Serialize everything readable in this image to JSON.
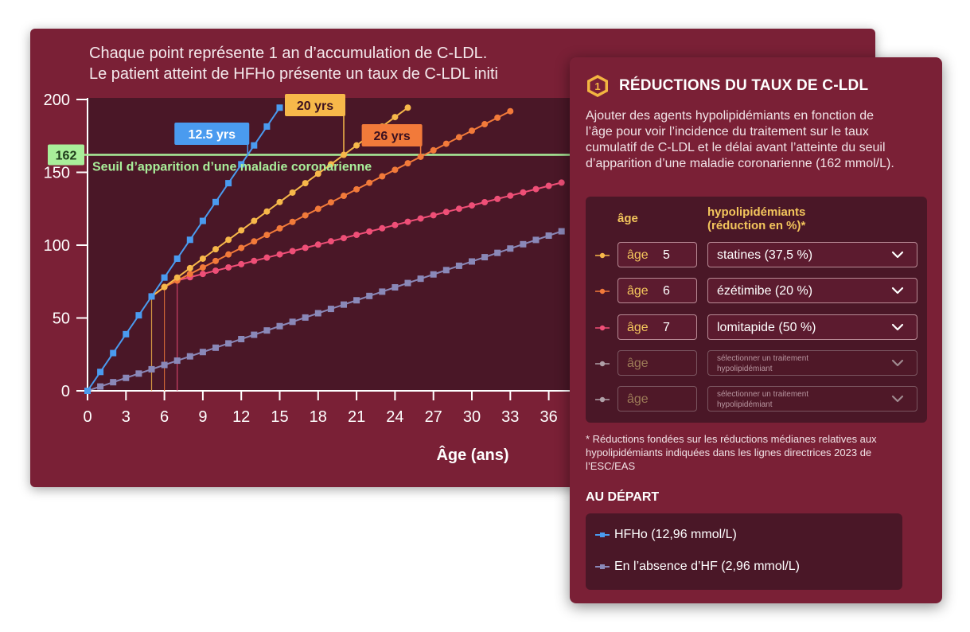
{
  "chart_header": {
    "line1": "Chaque point représente 1 an d’accumulation de C-LDL.",
    "line2": "Le patient atteint de HFHo présente un taux de C-LDL initi"
  },
  "chart_data": {
    "type": "line",
    "xlabel": "Âge (ans)",
    "ylabel": "",
    "xticks": [
      0,
      3,
      6,
      9,
      12,
      15,
      18,
      21,
      24,
      27,
      30,
      33,
      36
    ],
    "yticks": [
      0,
      50,
      100,
      150,
      200
    ],
    "xlim": [
      0,
      38
    ],
    "ylim": [
      0,
      200
    ],
    "grid": false,
    "threshold": {
      "value": 162,
      "label": "162",
      "text": "Seuil d’apparition d’une maladie coronarienne",
      "color": "#a9ef9a"
    },
    "series": [
      {
        "name": "HFHo (12,96 mmol/L)",
        "color": "#4a9bef",
        "marker": "square",
        "start_age": 0,
        "end_age": 15,
        "start_value": 0,
        "slope": 12.96
      },
      {
        "name": "",
        "color": "#f7b84a",
        "marker": "circle",
        "start_age": 5,
        "end_age": 25,
        "start_value": 64.8,
        "slope": 6.48
      },
      {
        "name": "",
        "color": "#f27a3a",
        "marker": "circle",
        "start_age": 5,
        "end_age": 33,
        "start_value": 64.8,
        "slope": 6.48,
        "second_age": 6,
        "second_slope": 4.47
      },
      {
        "name": "",
        "color": "#ef4f77",
        "marker": "circle",
        "start_age": 5,
        "end_age": 37,
        "start_value": 64.8,
        "slope": 6.48,
        "second_age": 6,
        "second_slope": 4.47,
        "third_age": 7,
        "third_slope": 2.24
      },
      {
        "name": "En l’absence d’HF (2,96 mmol/L)",
        "color": "#8a88b8",
        "marker": "square",
        "start_age": 0,
        "end_age": 37,
        "start_value": 0,
        "slope": 2.96
      }
    ],
    "callouts": [
      {
        "label": "12.5 yrs",
        "x": 12.5,
        "color": "#4a9bef",
        "text_color": "#ffffff"
      },
      {
        "label": "20 yrs",
        "x": 20,
        "color": "#f7b84a",
        "text_color": "#3a1020"
      },
      {
        "label": "26 yrs",
        "x": 26,
        "color": "#f27a3a",
        "text_color": "#3a1020"
      }
    ],
    "drop_lines": [
      {
        "x": 5,
        "color": "#f7b84a"
      },
      {
        "x": 6,
        "color": "#f27a3a"
      },
      {
        "x": 7,
        "color": "#ef4f77"
      }
    ]
  },
  "panel": {
    "step": "1",
    "title": "RÉDUCTIONS DU TAUX DE C-LDL",
    "description": "Ajouter des agents hypolipidémiants en fonction de l’âge pour voir l’incidence du traitement sur le taux cumulatif de C-LDL et le délai avant l’atteinte du seuil d’apparition d’une maladie coronarienne (162 mmol/L).",
    "col_age": "âge",
    "col_drug_line1": "hypolipidémiants",
    "col_drug_line2": "(réduction en %)*",
    "rows": [
      {
        "color": "#f7b84a",
        "age_label": "âge",
        "age": "5",
        "drug": "statines (37,5 %)",
        "enabled": true
      },
      {
        "color": "#f27a3a",
        "age_label": "âge",
        "age": "6",
        "drug": "ézétimibe (20 %)",
        "enabled": true
      },
      {
        "color": "#ef4f77",
        "age_label": "âge",
        "age": "7",
        "drug": "lomitapide (50 %)",
        "enabled": true
      },
      {
        "color": "#b0a0a8",
        "age_label": "âge",
        "age": "",
        "drug": "",
        "placeholder_line1": "sélectionner un traitement",
        "placeholder_line2": "hypolipidémiant",
        "enabled": false
      },
      {
        "color": "#b0a0a8",
        "age_label": "âge",
        "age": "",
        "drug": "",
        "placeholder_line1": "sélectionner un traitement",
        "placeholder_line2": "hypolipidémiant",
        "enabled": false
      }
    ],
    "footnote": "* Réductions fondées sur les réductions médianes relatives aux hypolipidémiants indiquées dans les lignes directrices 2023 de l’ESC/EAS",
    "baseline_title": "AU DÉPART",
    "legend": [
      {
        "label": "HFHo (12,96 mmol/L)",
        "color": "#4a9bef"
      },
      {
        "label": "En l’absence d’HF (2,96 mmol/L)",
        "color": "#8a88b8"
      }
    ]
  }
}
